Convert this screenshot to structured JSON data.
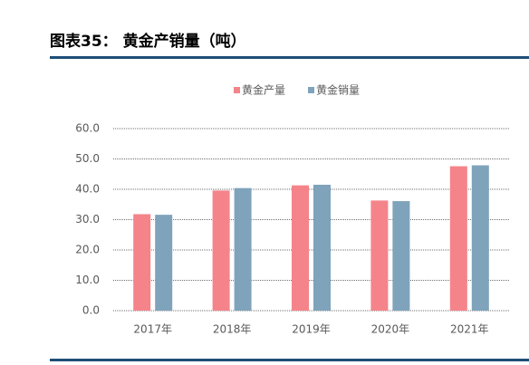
{
  "chart_data": {
    "type": "bar",
    "title": "图表35：  黄金产销量（吨）",
    "categories": [
      "2017年",
      "2018年",
      "2019年",
      "2020年",
      "2021年"
    ],
    "series": [
      {
        "name": "黄金产量",
        "color": "#f4848a",
        "values": [
          31.8,
          39.6,
          41.3,
          36.3,
          47.6
        ]
      },
      {
        "name": "黄金销量",
        "color": "#7fa3bb",
        "values": [
          31.6,
          40.4,
          41.5,
          36.1,
          47.9
        ]
      }
    ],
    "ylim": [
      0,
      60
    ],
    "yticks": [
      {
        "value": 0,
        "label": "0.0"
      },
      {
        "value": 10,
        "label": "10.0"
      },
      {
        "value": 20,
        "label": "20.0"
      },
      {
        "value": 30,
        "label": "30.0"
      },
      {
        "value": 40,
        "label": "40.0"
      },
      {
        "value": 50,
        "label": "50.0"
      },
      {
        "value": 60,
        "label": "60.0"
      }
    ],
    "grid": true,
    "legend": "top"
  }
}
